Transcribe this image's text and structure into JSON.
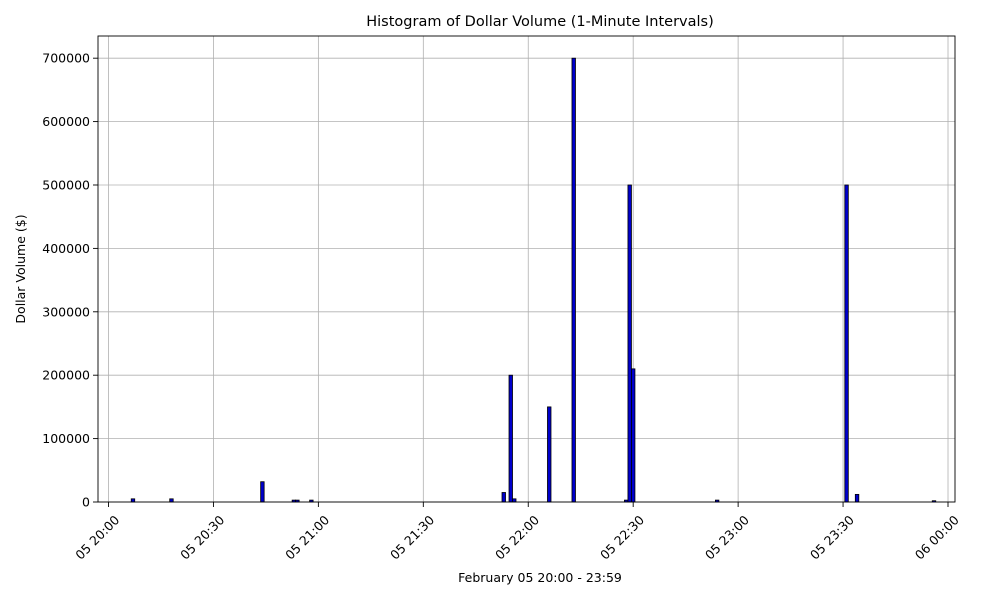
{
  "chart_data": {
    "type": "bar",
    "title": "Histogram of Dollar Volume (1-Minute Intervals)",
    "xlabel": "February 05 20:00 - 23:59",
    "ylabel": "Dollar Volume ($)",
    "x_unit": "time (Feb 05 20:00 - Feb 06 00:00)",
    "xlim": [
      "05 19:57",
      "06 00:02"
    ],
    "ylim": [
      0,
      735000
    ],
    "x_ticks": [
      {
        "t": "05 20:00",
        "label": "05 20:00"
      },
      {
        "t": "05 20:30",
        "label": "05 20:30"
      },
      {
        "t": "05 21:00",
        "label": "05 21:00"
      },
      {
        "t": "05 21:30",
        "label": "05 21:30"
      },
      {
        "t": "05 22:00",
        "label": "05 22:00"
      },
      {
        "t": "05 22:30",
        "label": "05 22:30"
      },
      {
        "t": "05 23:00",
        "label": "05 23:00"
      },
      {
        "t": "05 23:30",
        "label": "05 23:30"
      },
      {
        "t": "06 00:00",
        "label": "06 00:00"
      }
    ],
    "y_ticks": [
      0,
      100000,
      200000,
      300000,
      400000,
      500000,
      600000,
      700000
    ],
    "grid": true,
    "bar_color": "#0000cc",
    "bar_edge_color": "#000000",
    "bars": [
      {
        "t": "05 20:07",
        "value": 5000
      },
      {
        "t": "05 20:18",
        "value": 5000
      },
      {
        "t": "05 20:44",
        "value": 32000
      },
      {
        "t": "05 20:53",
        "value": 3000
      },
      {
        "t": "05 20:54",
        "value": 3000
      },
      {
        "t": "05 20:58",
        "value": 3000
      },
      {
        "t": "05 21:53",
        "value": 15000
      },
      {
        "t": "05 21:55",
        "value": 200000
      },
      {
        "t": "05 21:56",
        "value": 5000
      },
      {
        "t": "05 22:06",
        "value": 150000
      },
      {
        "t": "05 22:13",
        "value": 700000
      },
      {
        "t": "05 22:28",
        "value": 3000
      },
      {
        "t": "05 22:29",
        "value": 500000
      },
      {
        "t": "05 22:30",
        "value": 210000
      },
      {
        "t": "05 22:54",
        "value": 3000
      },
      {
        "t": "05 23:31",
        "value": 500000
      },
      {
        "t": "05 23:34",
        "value": 12000
      },
      {
        "t": "05 23:56",
        "value": 2000
      }
    ]
  }
}
